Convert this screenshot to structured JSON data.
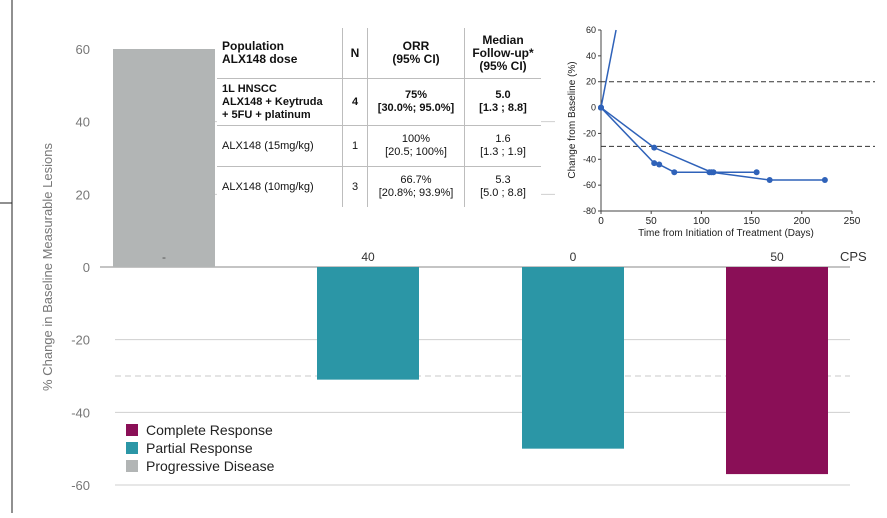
{
  "colors": {
    "complete_response": "#8a0f57",
    "partial_response": "#2b96a6",
    "progressive_disease": "#b2b5b5",
    "spider_line": "#2f62b9"
  },
  "chart_data": [
    {
      "type": "bar",
      "title": "",
      "ylabel": "% Change in Baseline Measurable Lesions",
      "ylim": [
        -60,
        60
      ],
      "yticks": [
        60,
        40,
        20,
        0,
        -20,
        -40,
        -60
      ],
      "grid": true,
      "legend_position": "bottom-left",
      "reference_line": -30,
      "cps_axis_label": "CPS",
      "categories": [
        "-",
        "40",
        "0",
        "50"
      ],
      "values": [
        60,
        -31,
        -50,
        -57
      ],
      "responses": [
        "Progressive Disease",
        "Partial Response",
        "Partial Response",
        "Complete Response"
      ],
      "truncated_top": [
        true,
        false,
        false,
        false
      ],
      "legend": [
        "Complete Response",
        "Partial Response",
        "Progressive Disease"
      ]
    },
    {
      "type": "line",
      "title": "",
      "xlabel": "Time from Initiation of Treatment (Days)",
      "ylabel": "Change from Baseline (%)",
      "xlim": [
        0,
        250
      ],
      "ylim": [
        -80,
        60
      ],
      "xticks": [
        0,
        50,
        100,
        150,
        200,
        250
      ],
      "yticks": [
        60,
        40,
        20,
        0,
        -20,
        -40,
        -60,
        -80
      ],
      "reference_lines": [
        20,
        -30
      ],
      "series": [
        {
          "x": [
            0,
            15
          ],
          "y": [
            0,
            60
          ],
          "markers": [
            true,
            false
          ]
        },
        {
          "x": [
            0,
            53,
            58,
            73,
            108,
            112,
            155
          ],
          "y": [
            0,
            -43,
            -44,
            -50,
            -50,
            -50,
            -50
          ],
          "markers": [
            true,
            true,
            true,
            true,
            true,
            true,
            true
          ]
        },
        {
          "x": [
            0,
            53,
            110,
            168,
            223
          ],
          "y": [
            0,
            -31,
            -50,
            -56,
            -56
          ],
          "markers": [
            true,
            true,
            true,
            true,
            true
          ]
        }
      ]
    }
  ],
  "table": {
    "headers": [
      "Population\nALX148 dose",
      "N",
      "ORR\n(95% CI)",
      "Median\nFollow-up*\n(95% CI)"
    ],
    "rows": [
      {
        "population": "1L HNSCC\nALX148 + Keytruda\n+ 5FU + platinum",
        "n": "4",
        "orr": "75%\n[30.0%; 95.0%]",
        "followup": "5.0\n[1.3 ; 8.8]"
      },
      {
        "population": "ALX148 (15mg/kg)",
        "n": "1",
        "orr": "100%\n[20.5; 100%]",
        "followup": "1.6\n[1.3 ; 1.9]"
      },
      {
        "population": "ALX148 (10mg/kg)",
        "n": "3",
        "orr": "66.7%\n[20.8%; 93.9%]",
        "followup": "5.3\n[5.0 ;  8.8]"
      }
    ]
  }
}
